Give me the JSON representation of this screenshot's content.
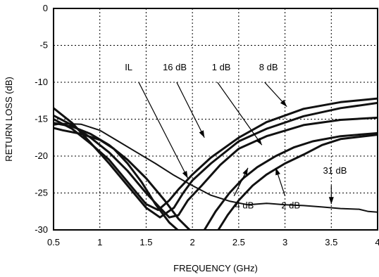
{
  "chart_data": {
    "type": "line",
    "title": "",
    "xlabel": "FREQUENCY (GHz)",
    "ylabel": "RETURN LOSS (dB)",
    "xlim": [
      0.5,
      4
    ],
    "ylim": [
      -30,
      0
    ],
    "xticks": [
      0.5,
      1,
      1.5,
      2,
      2.5,
      3,
      3.5,
      4
    ],
    "xtick_labels": [
      "0.5",
      "1",
      "1.5",
      "2",
      "2.5",
      "3",
      "3.5",
      "4"
    ],
    "yticks": [
      0,
      -5,
      -10,
      -15,
      -20,
      -25,
      -30
    ],
    "ytick_labels": [
      "0",
      "-5",
      "-10",
      "-15",
      "-20",
      "-25",
      "-30"
    ],
    "grid": true,
    "series": [
      {
        "name": "1 dB",
        "points": [
          [
            0.5,
            -13.5
          ],
          [
            0.7,
            -15.5
          ],
          [
            0.9,
            -18.2
          ],
          [
            1.1,
            -21.0
          ],
          [
            1.3,
            -24.0
          ],
          [
            1.5,
            -27.0
          ],
          [
            1.65,
            -28.3
          ],
          [
            1.8,
            -27.0
          ],
          [
            1.9,
            -25.0
          ],
          [
            2.0,
            -23.3
          ],
          [
            2.2,
            -21.0
          ],
          [
            2.5,
            -18.0
          ],
          [
            2.8,
            -16.3
          ],
          [
            3.2,
            -14.6
          ],
          [
            3.6,
            -13.5
          ],
          [
            4.0,
            -12.8
          ]
        ]
      },
      {
        "name": "16 dB",
        "points": [
          [
            0.5,
            -15.0
          ],
          [
            0.7,
            -16.3
          ],
          [
            0.9,
            -18.3
          ],
          [
            1.1,
            -20.5
          ],
          [
            1.3,
            -23.5
          ],
          [
            1.5,
            -26.5
          ],
          [
            1.63,
            -27.3
          ],
          [
            1.75,
            -26.0
          ],
          [
            1.85,
            -24.5
          ],
          [
            2.0,
            -22.5
          ],
          [
            2.2,
            -20.2
          ],
          [
            2.5,
            -17.5
          ],
          [
            2.8,
            -15.4
          ],
          [
            3.2,
            -13.6
          ],
          [
            3.6,
            -12.7
          ],
          [
            4.0,
            -12.2
          ]
        ]
      },
      {
        "name": "8 dB",
        "points": [
          [
            0.5,
            -14.5
          ],
          [
            0.7,
            -15.8
          ],
          [
            0.9,
            -17.5
          ],
          [
            1.1,
            -19.5
          ],
          [
            1.3,
            -22.0
          ],
          [
            1.5,
            -25.0
          ],
          [
            1.65,
            -27.0
          ],
          [
            1.75,
            -28.3
          ],
          [
            1.85,
            -28.0
          ],
          [
            1.95,
            -26.0
          ],
          [
            2.1,
            -24.0
          ],
          [
            2.3,
            -21.2
          ],
          [
            2.5,
            -19.0
          ],
          [
            2.8,
            -17.3
          ],
          [
            3.2,
            -15.8
          ],
          [
            3.6,
            -15.1
          ],
          [
            4.0,
            -14.8
          ]
        ]
      },
      {
        "name": "IL",
        "points": [
          [
            0.5,
            -16.2
          ],
          [
            0.6,
            -16.5
          ],
          [
            0.8,
            -17.0
          ],
          [
            1.0,
            -17.8
          ],
          [
            1.15,
            -19.0
          ],
          [
            1.3,
            -21.0
          ],
          [
            1.45,
            -23.5
          ],
          [
            1.6,
            -26.5
          ],
          [
            1.75,
            -29.0
          ],
          [
            1.84,
            -30.0
          ]
        ]
      },
      {
        "name": "4 dB",
        "points": [
          [
            0.5,
            -15.5
          ],
          [
            0.7,
            -16.0
          ],
          [
            0.9,
            -17.0
          ],
          [
            1.1,
            -18.5
          ],
          [
            1.3,
            -20.5
          ],
          [
            1.5,
            -23.0
          ],
          [
            1.7,
            -26.0
          ],
          [
            1.85,
            -28.5
          ],
          [
            1.97,
            -30.0
          ]
        ]
      },
      {
        "name": "2 dB",
        "points": [
          [
            2.13,
            -30.0
          ],
          [
            2.25,
            -27.5
          ],
          [
            2.4,
            -25.0
          ],
          [
            2.55,
            -23.0
          ],
          [
            2.7,
            -21.5
          ],
          [
            2.9,
            -20.0
          ],
          [
            3.1,
            -18.8
          ],
          [
            3.3,
            -18.0
          ],
          [
            3.6,
            -17.3
          ],
          [
            4.0,
            -16.9
          ]
        ]
      },
      {
        "name": "2 dB",
        "points": [
          [
            2.28,
            -30.0
          ],
          [
            2.38,
            -28.0
          ],
          [
            2.5,
            -26.0
          ],
          [
            2.65,
            -24.0
          ],
          [
            2.8,
            -22.5
          ],
          [
            3.0,
            -21.0
          ],
          [
            3.2,
            -19.8
          ],
          [
            3.4,
            -18.5
          ],
          [
            3.6,
            -17.7
          ],
          [
            4.0,
            -17.1
          ]
        ]
      },
      {
        "name": "31 dB",
        "thin": true,
        "points": [
          [
            0.5,
            -15.8
          ],
          [
            0.6,
            -15.6
          ],
          [
            0.8,
            -15.7
          ],
          [
            1.0,
            -16.5
          ],
          [
            1.2,
            -18.0
          ],
          [
            1.4,
            -19.5
          ],
          [
            1.6,
            -21.0
          ],
          [
            1.8,
            -22.6
          ],
          [
            2.0,
            -24.0
          ],
          [
            2.2,
            -25.3
          ],
          [
            2.4,
            -26.1
          ],
          [
            2.6,
            -26.6
          ],
          [
            2.8,
            -26.4
          ],
          [
            3.0,
            -26.6
          ],
          [
            3.2,
            -26.7
          ],
          [
            3.4,
            -26.9
          ],
          [
            3.6,
            -27.1
          ],
          [
            3.8,
            -27.2
          ],
          [
            3.9,
            -27.5
          ],
          [
            4.0,
            -27.6
          ]
        ]
      }
    ],
    "annotations": [
      {
        "text": "IL",
        "label_at": [
          1.27,
          -8.4
        ],
        "arrow_from": [
          1.42,
          -10.0
        ],
        "arrow_to": [
          1.95,
          -23.0
        ]
      },
      {
        "text": "16 dB",
        "label_at": [
          1.68,
          -8.4
        ],
        "arrow_from": [
          1.83,
          -10.0
        ],
        "arrow_to": [
          2.13,
          -17.5
        ]
      },
      {
        "text": "1 dB",
        "label_at": [
          2.21,
          -8.4
        ],
        "arrow_from": [
          2.27,
          -10.0
        ],
        "arrow_to": [
          2.75,
          -18.5
        ]
      },
      {
        "text": "8 dB",
        "label_at": [
          2.72,
          -8.4
        ],
        "arrow_from": [
          2.78,
          -10.0
        ],
        "arrow_to": [
          3.02,
          -13.3
        ]
      },
      {
        "text": "4 dB",
        "label_at": [
          2.46,
          -27.1
        ],
        "arrow_from": [
          2.45,
          -25.4
        ],
        "arrow_to": [
          2.6,
          -21.6
        ]
      },
      {
        "text": "2 dB",
        "label_at": [
          2.96,
          -27.1
        ],
        "arrow_from": [
          3.0,
          -25.4
        ],
        "arrow_to": [
          2.9,
          -21.6
        ]
      },
      {
        "text": "31 dB",
        "label_at": [
          3.41,
          -22.4
        ],
        "arrow_from": [
          3.5,
          -24.0
        ],
        "arrow_to": [
          3.5,
          -26.5
        ]
      }
    ]
  }
}
